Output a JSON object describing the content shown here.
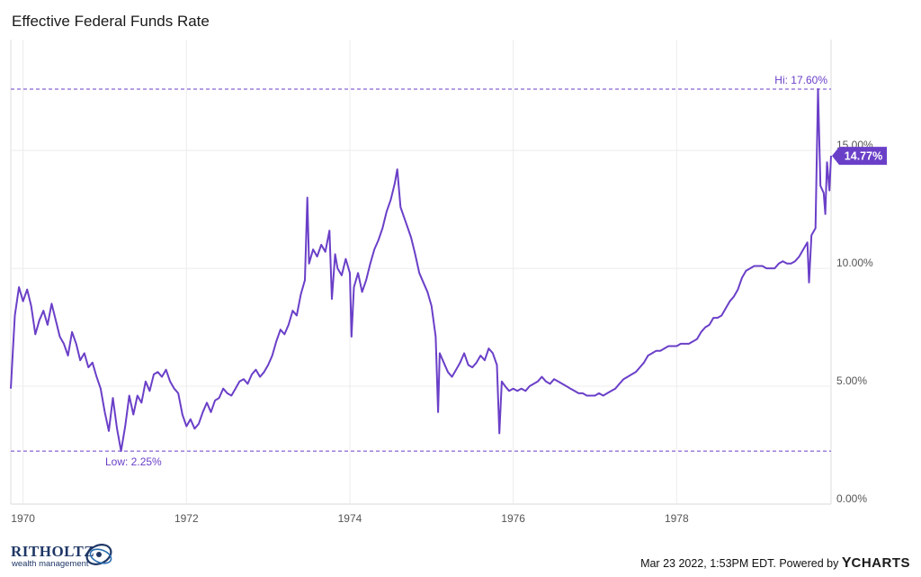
{
  "title": "Effective Federal Funds Rate",
  "footer": {
    "brand_name": "RITHOLTZ",
    "brand_sub": "wealth management",
    "timestamp": "Mar 23 2022, 1:53PM EDT.",
    "powered_by": "Powered by",
    "provider_y": "Y",
    "provider_rest": "CHARTS"
  },
  "colors": {
    "series": "#6a3fc8",
    "grid": "#ececec",
    "label_bg": "#6a3fc8"
  },
  "chart_data": {
    "type": "line",
    "title": "Effective Federal Funds Rate",
    "xlabel": "",
    "ylabel": "",
    "xlim": [
      1969.85,
      1979.89
    ],
    "ylim": [
      0,
      19.7
    ],
    "x_ticks": [
      1970,
      1972,
      1974,
      1976,
      1978
    ],
    "x_tick_labels": [
      "1970",
      "1972",
      "1974",
      "1976",
      "1978"
    ],
    "y_ticks": [
      0,
      5,
      10,
      15
    ],
    "y_tick_labels": [
      "0.00%",
      "5.00%",
      "10.00%",
      "15.00%"
    ],
    "grid": true,
    "annotations": {
      "high": {
        "value": 17.6,
        "label": "Hi: 17.60%"
      },
      "low": {
        "value": 2.25,
        "label": "Low: 2.25%"
      },
      "last": {
        "value": 14.77,
        "label": "14.77%"
      }
    },
    "series": [
      {
        "name": "",
        "points": [
          [
            1969.85,
            4.9
          ],
          [
            1969.9,
            8.0
          ],
          [
            1969.95,
            9.2
          ],
          [
            1970.0,
            8.6
          ],
          [
            1970.05,
            9.1
          ],
          [
            1970.1,
            8.4
          ],
          [
            1970.15,
            7.2
          ],
          [
            1970.2,
            7.8
          ],
          [
            1970.25,
            8.2
          ],
          [
            1970.3,
            7.6
          ],
          [
            1970.35,
            8.5
          ],
          [
            1970.4,
            7.8
          ],
          [
            1970.45,
            7.1
          ],
          [
            1970.5,
            6.8
          ],
          [
            1970.55,
            6.3
          ],
          [
            1970.6,
            7.3
          ],
          [
            1970.65,
            6.8
          ],
          [
            1970.7,
            6.1
          ],
          [
            1970.75,
            6.4
          ],
          [
            1970.8,
            5.8
          ],
          [
            1970.85,
            6.0
          ],
          [
            1970.9,
            5.4
          ],
          [
            1970.95,
            4.9
          ],
          [
            1971.0,
            3.9
          ],
          [
            1971.05,
            3.1
          ],
          [
            1971.1,
            4.5
          ],
          [
            1971.15,
            3.2
          ],
          [
            1971.2,
            2.25
          ],
          [
            1971.25,
            3.3
          ],
          [
            1971.3,
            4.6
          ],
          [
            1971.35,
            3.8
          ],
          [
            1971.4,
            4.6
          ],
          [
            1971.45,
            4.3
          ],
          [
            1971.5,
            5.2
          ],
          [
            1971.55,
            4.8
          ],
          [
            1971.6,
            5.5
          ],
          [
            1971.65,
            5.6
          ],
          [
            1971.7,
            5.4
          ],
          [
            1971.75,
            5.7
          ],
          [
            1971.8,
            5.2
          ],
          [
            1971.85,
            4.9
          ],
          [
            1971.9,
            4.7
          ],
          [
            1971.95,
            3.8
          ],
          [
            1972.0,
            3.3
          ],
          [
            1972.05,
            3.6
          ],
          [
            1972.1,
            3.2
          ],
          [
            1972.15,
            3.4
          ],
          [
            1972.2,
            3.9
          ],
          [
            1972.25,
            4.3
          ],
          [
            1972.3,
            3.9
          ],
          [
            1972.35,
            4.4
          ],
          [
            1972.4,
            4.5
          ],
          [
            1972.45,
            4.9
          ],
          [
            1972.5,
            4.7
          ],
          [
            1972.55,
            4.6
          ],
          [
            1972.6,
            4.9
          ],
          [
            1972.65,
            5.2
          ],
          [
            1972.7,
            5.3
          ],
          [
            1972.75,
            5.1
          ],
          [
            1972.8,
            5.5
          ],
          [
            1972.85,
            5.7
          ],
          [
            1972.9,
            5.4
          ],
          [
            1972.95,
            5.6
          ],
          [
            1973.0,
            5.9
          ],
          [
            1973.05,
            6.3
          ],
          [
            1973.1,
            6.9
          ],
          [
            1973.15,
            7.4
          ],
          [
            1973.2,
            7.2
          ],
          [
            1973.25,
            7.6
          ],
          [
            1973.3,
            8.2
          ],
          [
            1973.35,
            8.0
          ],
          [
            1973.4,
            8.9
          ],
          [
            1973.45,
            9.5
          ],
          [
            1973.48,
            13.0
          ],
          [
            1973.5,
            10.2
          ],
          [
            1973.55,
            10.8
          ],
          [
            1973.6,
            10.5
          ],
          [
            1973.65,
            11.0
          ],
          [
            1973.7,
            10.7
          ],
          [
            1973.75,
            11.6
          ],
          [
            1973.78,
            8.7
          ],
          [
            1973.82,
            10.6
          ],
          [
            1973.85,
            10.0
          ],
          [
            1973.9,
            9.7
          ],
          [
            1973.95,
            10.4
          ],
          [
            1974.0,
            9.8
          ],
          [
            1974.02,
            7.1
          ],
          [
            1974.05,
            9.2
          ],
          [
            1974.1,
            9.8
          ],
          [
            1974.15,
            9.0
          ],
          [
            1974.2,
            9.5
          ],
          [
            1974.25,
            10.2
          ],
          [
            1974.3,
            10.8
          ],
          [
            1974.35,
            11.2
          ],
          [
            1974.4,
            11.7
          ],
          [
            1974.45,
            12.4
          ],
          [
            1974.5,
            12.9
          ],
          [
            1974.55,
            13.6
          ],
          [
            1974.58,
            14.2
          ],
          [
            1974.62,
            12.6
          ],
          [
            1974.65,
            12.3
          ],
          [
            1974.7,
            11.8
          ],
          [
            1974.75,
            11.3
          ],
          [
            1974.8,
            10.6
          ],
          [
            1974.85,
            9.8
          ],
          [
            1974.9,
            9.4
          ],
          [
            1974.95,
            9.0
          ],
          [
            1975.0,
            8.4
          ],
          [
            1975.05,
            7.1
          ],
          [
            1975.08,
            3.9
          ],
          [
            1975.1,
            6.4
          ],
          [
            1975.15,
            6.0
          ],
          [
            1975.2,
            5.6
          ],
          [
            1975.25,
            5.4
          ],
          [
            1975.3,
            5.7
          ],
          [
            1975.35,
            6.0
          ],
          [
            1975.4,
            6.4
          ],
          [
            1975.45,
            5.9
          ],
          [
            1975.5,
            5.8
          ],
          [
            1975.55,
            6.0
          ],
          [
            1975.6,
            6.3
          ],
          [
            1975.65,
            6.1
          ],
          [
            1975.7,
            6.6
          ],
          [
            1975.75,
            6.4
          ],
          [
            1975.8,
            5.9
          ],
          [
            1975.83,
            3.0
          ],
          [
            1975.86,
            5.2
          ],
          [
            1975.9,
            5.0
          ],
          [
            1975.95,
            4.8
          ],
          [
            1976.0,
            4.9
          ],
          [
            1976.05,
            4.8
          ],
          [
            1976.1,
            4.9
          ],
          [
            1976.15,
            4.8
          ],
          [
            1976.2,
            5.0
          ],
          [
            1976.25,
            5.1
          ],
          [
            1976.3,
            5.2
          ],
          [
            1976.35,
            5.4
          ],
          [
            1976.4,
            5.2
          ],
          [
            1976.45,
            5.1
          ],
          [
            1976.5,
            5.3
          ],
          [
            1976.55,
            5.2
          ],
          [
            1976.6,
            5.1
          ],
          [
            1976.65,
            5.0
          ],
          [
            1976.7,
            4.9
          ],
          [
            1976.75,
            4.8
          ],
          [
            1976.8,
            4.7
          ],
          [
            1976.85,
            4.7
          ],
          [
            1976.9,
            4.6
          ],
          [
            1976.95,
            4.6
          ],
          [
            1977.0,
            4.6
          ],
          [
            1977.05,
            4.7
          ],
          [
            1977.1,
            4.6
          ],
          [
            1977.15,
            4.7
          ],
          [
            1977.2,
            4.8
          ],
          [
            1977.25,
            4.9
          ],
          [
            1977.3,
            5.1
          ],
          [
            1977.35,
            5.3
          ],
          [
            1977.4,
            5.4
          ],
          [
            1977.45,
            5.5
          ],
          [
            1977.5,
            5.6
          ],
          [
            1977.55,
            5.8
          ],
          [
            1977.6,
            6.0
          ],
          [
            1977.65,
            6.3
          ],
          [
            1977.7,
            6.4
          ],
          [
            1977.75,
            6.5
          ],
          [
            1977.8,
            6.5
          ],
          [
            1977.85,
            6.6
          ],
          [
            1977.9,
            6.7
          ],
          [
            1977.95,
            6.7
          ],
          [
            1978.0,
            6.7
          ],
          [
            1978.05,
            6.8
          ],
          [
            1978.1,
            6.8
          ],
          [
            1978.15,
            6.8
          ],
          [
            1978.2,
            6.9
          ],
          [
            1978.25,
            7.0
          ],
          [
            1978.3,
            7.3
          ],
          [
            1978.35,
            7.5
          ],
          [
            1978.4,
            7.6
          ],
          [
            1978.45,
            7.9
          ],
          [
            1978.5,
            7.9
          ],
          [
            1978.55,
            8.0
          ],
          [
            1978.6,
            8.3
          ],
          [
            1978.65,
            8.6
          ],
          [
            1978.7,
            8.8
          ],
          [
            1978.75,
            9.1
          ],
          [
            1978.8,
            9.6
          ],
          [
            1978.85,
            9.9
          ],
          [
            1978.9,
            10.0
          ],
          [
            1978.95,
            10.1
          ],
          [
            1979.0,
            10.1
          ],
          [
            1979.05,
            10.1
          ],
          [
            1979.1,
            10.0
          ],
          [
            1979.15,
            10.0
          ],
          [
            1979.2,
            10.0
          ],
          [
            1979.25,
            10.2
          ],
          [
            1979.3,
            10.3
          ],
          [
            1979.35,
            10.2
          ],
          [
            1979.4,
            10.2
          ],
          [
            1979.45,
            10.3
          ],
          [
            1979.5,
            10.5
          ],
          [
            1979.55,
            10.8
          ],
          [
            1979.6,
            11.1
          ],
          [
            1979.62,
            9.4
          ],
          [
            1979.65,
            11.4
          ],
          [
            1979.7,
            11.7
          ],
          [
            1979.73,
            17.6
          ],
          [
            1979.76,
            13.5
          ],
          [
            1979.8,
            13.2
          ],
          [
            1979.82,
            12.3
          ],
          [
            1979.84,
            14.5
          ],
          [
            1979.87,
            13.3
          ],
          [
            1979.89,
            14.77
          ]
        ]
      }
    ]
  }
}
